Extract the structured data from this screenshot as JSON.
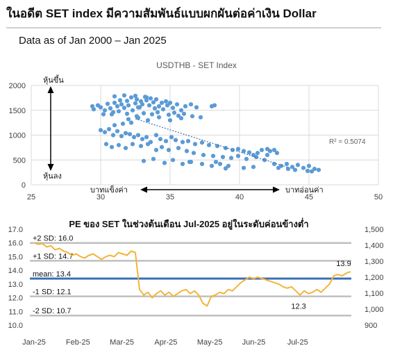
{
  "header": {
    "title": "ในอดีต SET index มีความสัมพันธ์แบบผกผันต่อค่าเงิน Dollar",
    "subtitle": "Data as of Jan 2000 – Jan 2025"
  },
  "colors": {
    "scatter_points": "#5b9bd5",
    "pe_line": "#f2b43a",
    "mean_line": "#3a6fb5",
    "sd_lines": "#bfbfbf"
  },
  "chart_data": [
    {
      "type": "scatter",
      "title": "USDTHB - SET Index",
      "xlim": [
        25,
        50
      ],
      "ylim": [
        0,
        2000
      ],
      "x_ticks": [
        "25",
        "30",
        "35",
        "40",
        "45",
        "50"
      ],
      "y_ticks": [
        "0",
        "500",
        "1000",
        "1500",
        "2000"
      ],
      "grid": true,
      "trendline": {
        "style": "dotted",
        "from": [
          32.5,
          1330
        ],
        "to": [
          43.5,
          350
        ]
      },
      "r_squared_label": "R² = 0.5074",
      "annotations": {
        "up": "หุ้นขึ้น",
        "down": "หุ้นลง",
        "strong_baht": "บาทแข็งค่า",
        "weak_baht": "บาทอ่อนค่า"
      },
      "points": [
        [
          29.4,
          1580
        ],
        [
          29.5,
          1520
        ],
        [
          29.8,
          1600
        ],
        [
          30.0,
          1560
        ],
        [
          30.3,
          1500
        ],
        [
          30.5,
          1630
        ],
        [
          30.7,
          1540
        ],
        [
          30.9,
          1460
        ],
        [
          31.0,
          1650
        ],
        [
          31.2,
          1580
        ],
        [
          31.4,
          1700
        ],
        [
          31.5,
          1620
        ],
        [
          31.7,
          1550
        ],
        [
          31.9,
          1690
        ],
        [
          32.0,
          1600
        ],
        [
          32.2,
          1760
        ],
        [
          32.3,
          1500
        ],
        [
          32.5,
          1640
        ],
        [
          32.6,
          1720
        ],
        [
          32.8,
          1560
        ],
        [
          32.9,
          1680
        ],
        [
          33.0,
          1620
        ],
        [
          33.2,
          1770
        ],
        [
          33.3,
          1700
        ],
        [
          33.5,
          1600
        ],
        [
          33.6,
          1740
        ],
        [
          33.8,
          1660
        ],
        [
          34.0,
          1720
        ],
        [
          34.2,
          1580
        ],
        [
          34.4,
          1650
        ],
        [
          34.5,
          1520
        ],
        [
          34.8,
          1600
        ],
        [
          35.0,
          1650
        ],
        [
          35.2,
          1550
        ],
        [
          35.5,
          1620
        ],
        [
          35.8,
          1500
        ],
        [
          36.1,
          1580
        ],
        [
          36.5,
          1620
        ],
        [
          36.9,
          1560
        ],
        [
          38.0,
          1580
        ],
        [
          38.2,
          1600
        ],
        [
          31.0,
          1780
        ],
        [
          31.7,
          1800
        ],
        [
          32.5,
          1790
        ],
        [
          33.3,
          1760
        ],
        [
          31.3,
          1480
        ],
        [
          30.8,
          1420
        ],
        [
          31.9,
          1430
        ],
        [
          32.6,
          1380
        ],
        [
          33.1,
          1440
        ],
        [
          33.7,
          1420
        ],
        [
          34.1,
          1460
        ],
        [
          34.9,
          1410
        ],
        [
          35.3,
          1450
        ],
        [
          35.6,
          1390
        ],
        [
          36.0,
          1430
        ],
        [
          36.6,
          1380
        ],
        [
          37.2,
          1360
        ],
        [
          30.2,
          1420
        ],
        [
          32.0,
          1320
        ],
        [
          32.7,
          1350
        ],
        [
          33.4,
          1300
        ],
        [
          34.2,
          1360
        ],
        [
          35.0,
          1300
        ],
        [
          35.8,
          1340
        ],
        [
          30.0,
          1100
        ],
        [
          30.3,
          1060
        ],
        [
          30.6,
          1120
        ],
        [
          30.9,
          1000
        ],
        [
          31.2,
          1080
        ],
        [
          31.5,
          980
        ],
        [
          31.8,
          1040
        ],
        [
          32.1,
          1020
        ],
        [
          32.4,
          960
        ],
        [
          32.7,
          1000
        ],
        [
          33.0,
          920
        ],
        [
          33.3,
          960
        ],
        [
          33.6,
          860
        ],
        [
          34.0,
          1000
        ],
        [
          34.3,
          920
        ],
        [
          34.7,
          880
        ],
        [
          35.1,
          960
        ],
        [
          35.4,
          900
        ],
        [
          35.9,
          860
        ],
        [
          36.3,
          880
        ],
        [
          36.8,
          820
        ],
        [
          37.3,
          850
        ],
        [
          37.8,
          800
        ],
        [
          38.4,
          780
        ],
        [
          39.0,
          740
        ],
        [
          39.5,
          700
        ],
        [
          39.9,
          720
        ],
        [
          40.3,
          680
        ],
        [
          40.7,
          650
        ],
        [
          41.0,
          600
        ],
        [
          41.3,
          640
        ],
        [
          41.6,
          700
        ],
        [
          42.0,
          720
        ],
        [
          42.2,
          680
        ],
        [
          42.5,
          700
        ],
        [
          42.7,
          640
        ],
        [
          42.0,
          600
        ],
        [
          30.4,
          820
        ],
        [
          30.8,
          760
        ],
        [
          31.3,
          800
        ],
        [
          31.8,
          740
        ],
        [
          32.3,
          820
        ],
        [
          32.9,
          780
        ],
        [
          33.4,
          820
        ],
        [
          34.0,
          700
        ],
        [
          34.4,
          760
        ],
        [
          34.9,
          700
        ],
        [
          35.6,
          740
        ],
        [
          36.2,
          680
        ],
        [
          36.7,
          640
        ],
        [
          37.4,
          600
        ],
        [
          38.1,
          580
        ],
        [
          38.8,
          560
        ],
        [
          39.4,
          540
        ],
        [
          39.9,
          580
        ],
        [
          40.5,
          520
        ],
        [
          41.2,
          560
        ],
        [
          41.8,
          500
        ],
        [
          33.1,
          480
        ],
        [
          33.8,
          520
        ],
        [
          34.6,
          440
        ],
        [
          35.2,
          500
        ],
        [
          35.9,
          420
        ],
        [
          36.5,
          460
        ],
        [
          37.3,
          420
        ],
        [
          38.0,
          380
        ],
        [
          38.6,
          420
        ],
        [
          39.2,
          380
        ],
        [
          40.3,
          340
        ],
        [
          41.0,
          360
        ],
        [
          42.5,
          420
        ],
        [
          43.0,
          380
        ],
        [
          43.4,
          420
        ],
        [
          43.8,
          360
        ],
        [
          44.2,
          400
        ],
        [
          44.6,
          340
        ],
        [
          45.0,
          380
        ],
        [
          45.4,
          320
        ],
        [
          45.7,
          300
        ],
        [
          44.0,
          300
        ],
        [
          43.5,
          320
        ],
        [
          42.8,
          340
        ],
        [
          44.9,
          280
        ],
        [
          45.2,
          270
        ],
        [
          39.0,
          330
        ],
        [
          36.4,
          460
        ],
        [
          38.3,
          460
        ],
        [
          32.7,
          1560
        ],
        [
          34.7,
          1680
        ],
        [
          33.9,
          1540
        ],
        [
          31.6,
          1230
        ],
        [
          31.0,
          1200
        ],
        [
          32.2,
          1250
        ]
      ]
    },
    {
      "type": "line",
      "title": "PE ของ SET ในช่วงต้นเดือน Jul-2025 อยู่ในระดับค่อนข้างต่ำ",
      "x_ticks": [
        "Jan-25",
        "Feb-25",
        "Mar-25",
        "Apr-25",
        "May-25",
        "Jun-25",
        "Jul-25"
      ],
      "y_left": [
        "10.0",
        "11.0",
        "12.0",
        "13.0",
        "14.0",
        "15.0",
        "16.0",
        "17.0"
      ],
      "y_right": [
        "900",
        "1,000",
        "1,100",
        "1,200",
        "1,300",
        "1,400",
        "1,500"
      ],
      "ylim_left": [
        10,
        17
      ],
      "reference_lines": [
        {
          "label": "+2 SD: 16.0",
          "value": 16.0
        },
        {
          "label": "+1 SD: 14.7",
          "value": 14.7
        },
        {
          "label": "mean: 13.4",
          "value": 13.4
        },
        {
          "label": "-1 SD: 12.1",
          "value": 12.1
        },
        {
          "label": "-2 SD: 10.7",
          "value": 10.7
        }
      ],
      "point_labels": {
        "low": "12.3",
        "end": "13.9"
      },
      "series": [
        {
          "values": [
            16.0,
            15.9,
            15.95,
            15.7,
            15.8,
            15.5,
            15.6,
            15.4,
            15.3,
            15.1,
            15.2,
            15.0,
            14.9,
            15.1,
            15.2,
            15.0,
            14.8,
            15.0,
            15.1,
            15.0,
            15.3,
            15.2,
            15.1,
            15.4,
            15.3,
            12.6,
            12.2,
            12.4,
            12.0,
            12.3,
            12.5,
            12.2,
            12.4,
            12.1,
            12.3,
            12.5,
            12.6,
            12.3,
            12.5,
            12.2,
            11.6,
            11.4,
            12.1,
            12.2,
            12.4,
            12.3,
            12.6,
            12.5,
            12.8,
            13.1,
            13.3,
            13.5,
            13.4,
            13.5,
            13.4,
            13.3,
            13.2,
            13.1,
            13.0,
            12.8,
            12.7,
            12.8,
            12.5,
            12.2,
            12.5,
            12.3,
            12.4,
            12.6,
            12.4,
            12.7,
            13.0,
            13.6,
            13.7,
            13.6,
            13.8,
            13.9
          ]
        }
      ]
    }
  ]
}
